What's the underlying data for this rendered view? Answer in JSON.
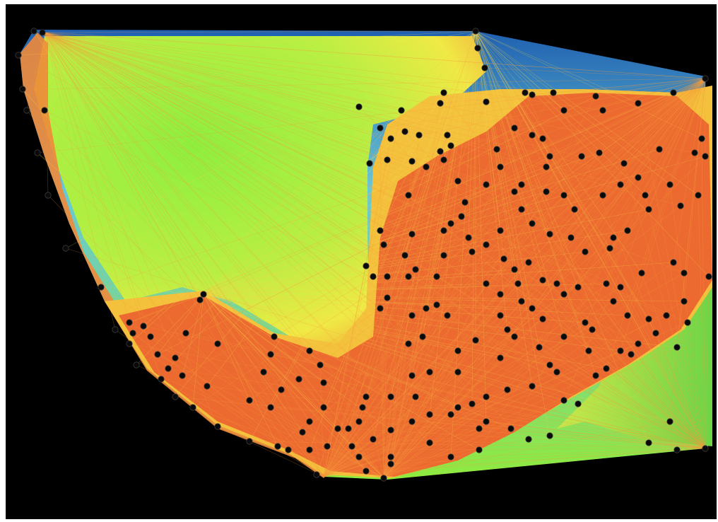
{
  "image": {
    "kind": "triangulated mesh point-cloud visualization",
    "colors": {
      "background": "#000000",
      "frame": "#ffffff",
      "dense_region": "#ec6a2f",
      "transition": "#f5e13d",
      "sparse_region": "#86ec3c",
      "far_edges": "#3fa2d6",
      "nodes": "#0a0a0a"
    }
  }
}
